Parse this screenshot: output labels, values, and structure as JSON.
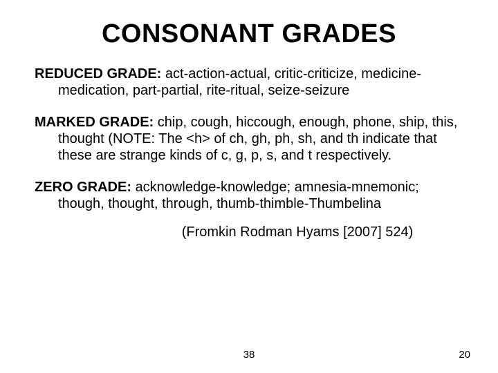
{
  "title": "CONSONANT GRADES",
  "sections": {
    "reduced": {
      "label": "REDUCED GRADE:  ",
      "text": "act-action-actual, critic-criticize, medicine-medication, part-partial, rite-ritual, seize-seizure"
    },
    "marked": {
      "label": "MARKED GRADE: ",
      "text": "chip, cough, hiccough, enough, phone, ship, this, thought (NOTE: The <h> of ch, gh, ph, sh, and th indicate that these are strange kinds of c, g, p, s, and t respectively."
    },
    "zero": {
      "label": "ZERO GRADE: ",
      "text": "acknowledge-knowledge; amnesia-mnemonic; though, thought, through, thumb-thimble-Thumbelina"
    }
  },
  "citation": "(Fromkin Rodman Hyams [2007] 524)",
  "page_center": "38",
  "page_right": "20",
  "style": {
    "background_color": "#ffffff",
    "text_color": "#000000",
    "title_fontsize": 38,
    "body_fontsize": 20,
    "footer_fontsize": 15,
    "font_family": "Arial"
  }
}
